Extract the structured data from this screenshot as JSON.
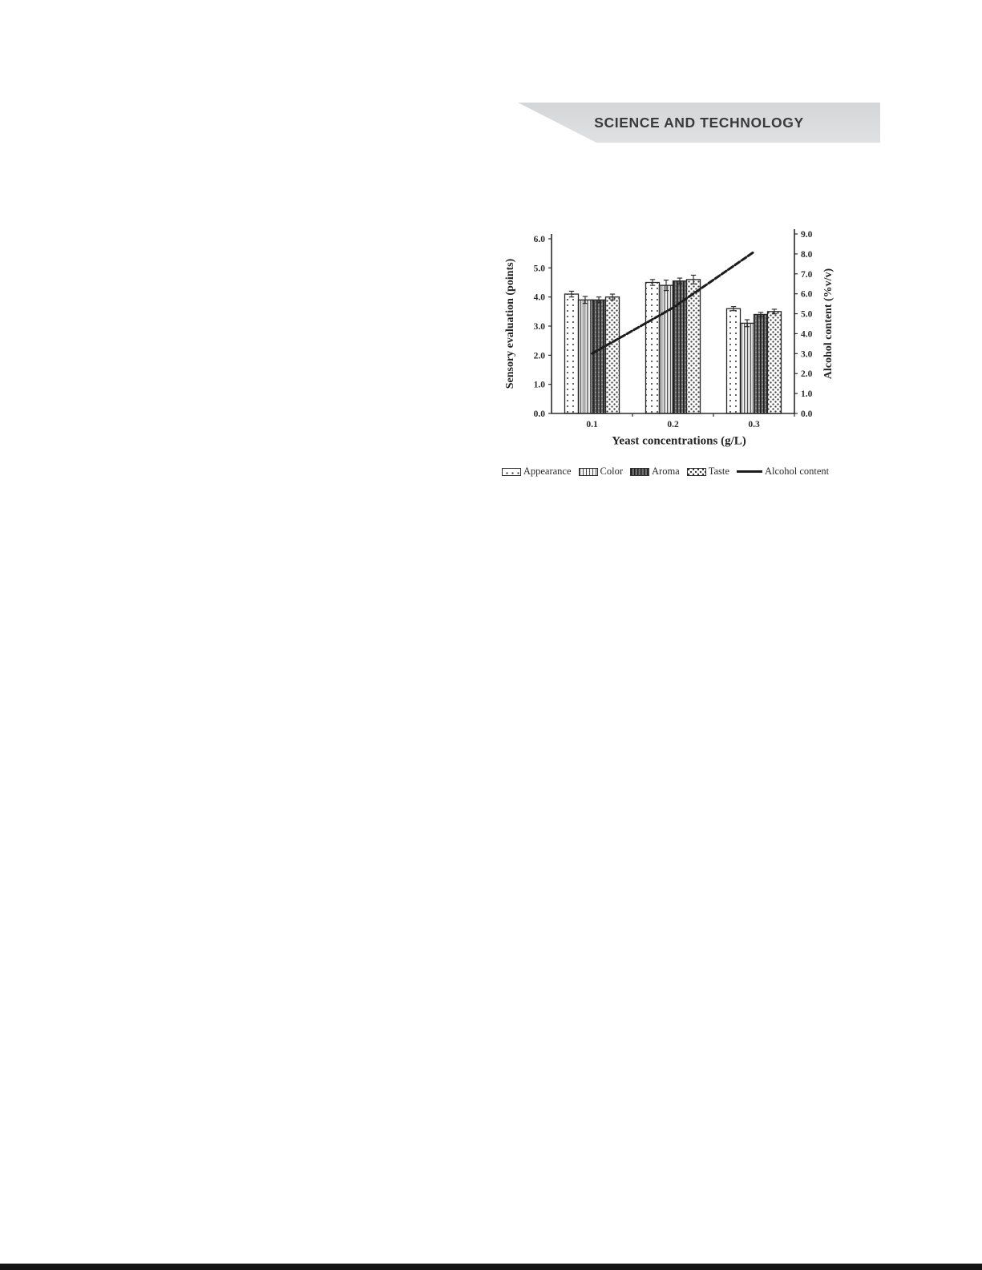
{
  "banner": {
    "title": "SCIENCE AND TECHNOLOGY"
  },
  "chart_data": {
    "type": "bar",
    "subtype": "grouped-bars-with-secondary-line",
    "title": "",
    "categories": [
      "0.1",
      "0.2",
      "0.3"
    ],
    "series": [
      {
        "name": "Appearance",
        "pattern": "dots",
        "values": [
          4.1,
          4.5,
          3.6
        ],
        "errors": [
          0.1,
          0.1,
          0.07
        ]
      },
      {
        "name": "Color",
        "pattern": "vlines",
        "values": [
          3.9,
          4.4,
          3.1
        ],
        "errors": [
          0.12,
          0.18,
          0.12
        ]
      },
      {
        "name": "Aroma",
        "pattern": "dark",
        "values": [
          3.9,
          4.55,
          3.4
        ],
        "errors": [
          0.1,
          0.1,
          0.07
        ]
      },
      {
        "name": "Taste",
        "pattern": "diamond",
        "values": [
          4.0,
          4.6,
          3.5
        ],
        "errors": [
          0.1,
          0.15,
          0.08
        ]
      }
    ],
    "line_series": {
      "name": "Alcohol content",
      "values": [
        3.0,
        5.3,
        8.1
      ],
      "color": "#1c1c1c",
      "dashed": true
    },
    "left_axis": {
      "title": "Sensory evaluation (points)",
      "min": 0,
      "max": 6,
      "step": 1,
      "ticks": [
        "0.0",
        "1.0",
        "2.0",
        "3.0",
        "4.0",
        "5.0",
        "6.0"
      ]
    },
    "right_axis": {
      "title": "Alcohol content (%v/v)",
      "min": 0,
      "max": 9,
      "step": 1,
      "ticks": [
        "0.0",
        "1.0",
        "2.0",
        "3.0",
        "4.0",
        "5.0",
        "6.0",
        "7.0",
        "8.0",
        "9.0"
      ]
    },
    "x_axis": {
      "title": "Yeast concentrations (g/L)"
    },
    "legend_position": "bottom",
    "grid": false,
    "bar_outline_color": "#272727",
    "text_color": "#2b2b2b"
  }
}
